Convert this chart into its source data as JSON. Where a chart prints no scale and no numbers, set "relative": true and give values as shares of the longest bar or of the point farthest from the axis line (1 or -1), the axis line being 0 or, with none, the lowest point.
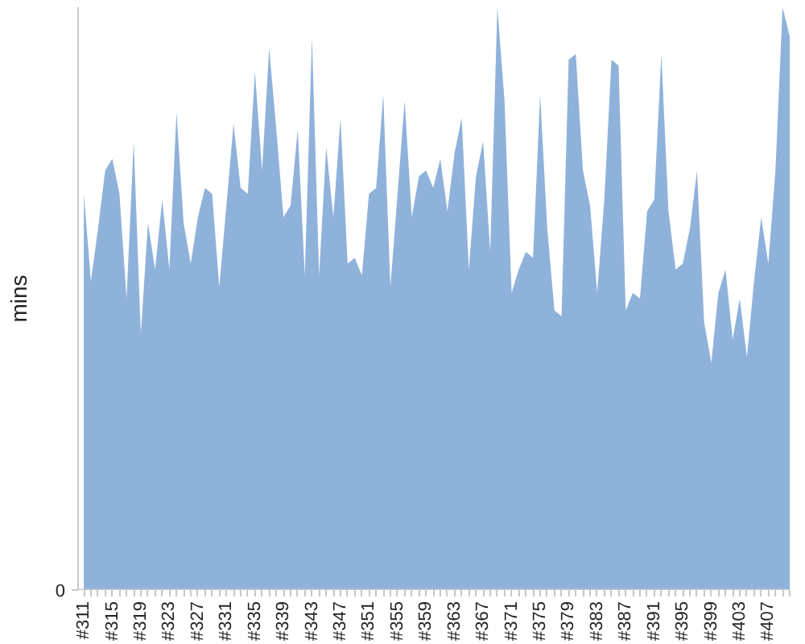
{
  "chart_data": {
    "type": "area",
    "ylabel": "mins",
    "relative": true,
    "grid": false,
    "color": "#8fb2db",
    "ref_lines": [
      {
        "axis": "y",
        "value": 0,
        "label": "0",
        "color": "#c8c8c8"
      }
    ],
    "categories": [
      "#311",
      null,
      null,
      null,
      "#315",
      null,
      null,
      null,
      "#319",
      null,
      null,
      null,
      "#323",
      null,
      null,
      null,
      "#327",
      null,
      null,
      null,
      "#331",
      null,
      null,
      null,
      "#335",
      null,
      null,
      null,
      "#339",
      null,
      null,
      null,
      "#343",
      null,
      null,
      null,
      "#347",
      null,
      null,
      null,
      "#351",
      null,
      null,
      null,
      "#355",
      null,
      null,
      null,
      "#359",
      null,
      null,
      null,
      "#363",
      null,
      null,
      null,
      "#367",
      null,
      null,
      null,
      "#371",
      null,
      null,
      null,
      "#375",
      null,
      null,
      null,
      "#379",
      null,
      null,
      null,
      "#383",
      null,
      null,
      null,
      "#387",
      null,
      null,
      null,
      "#391",
      null,
      null,
      null,
      "#395",
      null,
      null,
      null,
      "#399",
      null,
      null,
      null,
      "#403",
      null,
      null,
      null,
      "#407",
      null,
      null,
      null
    ],
    "values": [
      0.68,
      0.53,
      0.62,
      0.72,
      0.74,
      0.68,
      0.5,
      0.77,
      0.44,
      0.63,
      0.55,
      0.67,
      0.55,
      0.82,
      0.63,
      0.56,
      0.64,
      0.69,
      0.68,
      0.52,
      0.66,
      0.8,
      0.69,
      0.68,
      0.89,
      0.72,
      0.93,
      0.79,
      0.64,
      0.66,
      0.79,
      0.54,
      0.95,
      0.54,
      0.76,
      0.64,
      0.81,
      0.56,
      0.57,
      0.54,
      0.68,
      0.69,
      0.85,
      0.52,
      0.68,
      0.84,
      0.64,
      0.71,
      0.72,
      0.69,
      0.74,
      0.65,
      0.75,
      0.81,
      0.55,
      0.71,
      0.77,
      0.58,
      1,
      0.84,
      0.51,
      0.55,
      0.58,
      0.57,
      0.85,
      0.62,
      0.48,
      0.47,
      0.91,
      0.92,
      0.72,
      0.66,
      0.51,
      0.67,
      0.91,
      0.9,
      0.48,
      0.51,
      0.5,
      0.65,
      0.67,
      0.92,
      0.65,
      0.55,
      0.56,
      0.62,
      0.72,
      0.46,
      0.39,
      0.51,
      0.55,
      0.43,
      0.5,
      0.4,
      0.53,
      0.64,
      0.56,
      0.72,
      1,
      0.95
    ]
  }
}
